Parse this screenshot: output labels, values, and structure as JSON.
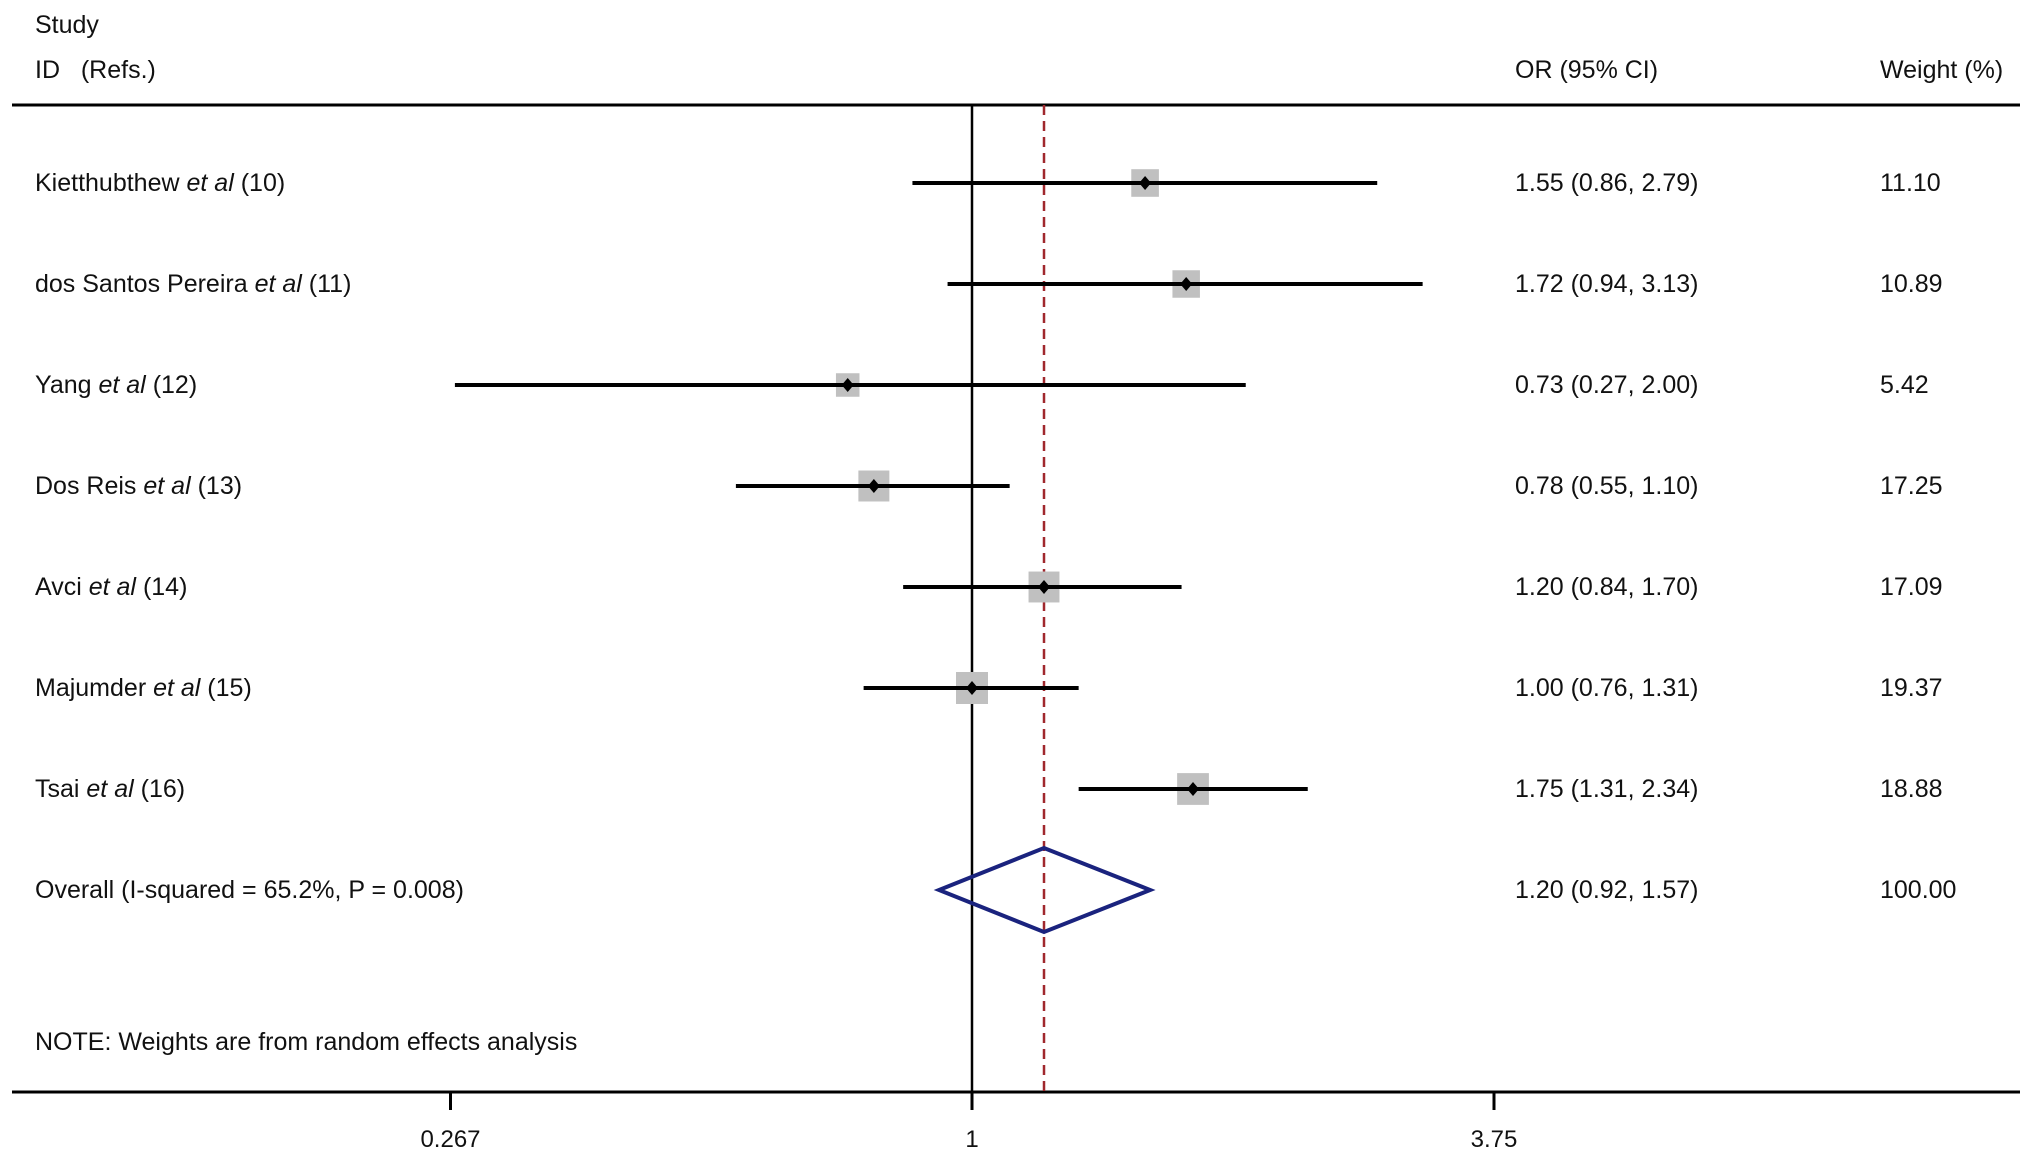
{
  "header": {
    "study": "Study",
    "id_refs": "ID   (Refs.)",
    "or_ci": "OR (95% CI)",
    "weight": "Weight (%)"
  },
  "footnote": "NOTE: Weights are from random effects analysis",
  "chart_data": {
    "type": "forest",
    "x_scale": "log",
    "xlim": [
      0.25,
      12
    ],
    "x_ticks": [
      0.267,
      1,
      3.75
    ],
    "x_tick_labels": [
      "0.267",
      "1",
      "3.75"
    ],
    "reference_line": 1,
    "overall_line": 1.2,
    "colors": {
      "line": "#000000",
      "box": "#c0c0c0",
      "diamond": "#1a237e",
      "overall_line": "#a0282d"
    },
    "studies": [
      {
        "name": "Kietthubthew",
        "etal": "et al",
        "ref": "(10)",
        "or": 1.55,
        "lo": 0.86,
        "hi": 2.79,
        "ci_text": "1.55 (0.86, 2.79)",
        "weight": 11.1,
        "weight_text": "11.10"
      },
      {
        "name": "dos Santos Pereira",
        "etal": "et al",
        "ref": "(11)",
        "or": 1.72,
        "lo": 0.94,
        "hi": 3.13,
        "ci_text": "1.72 (0.94, 3.13)",
        "weight": 10.89,
        "weight_text": "10.89"
      },
      {
        "name": "Yang",
        "etal": "et al",
        "ref": "(12)",
        "or": 0.73,
        "lo": 0.27,
        "hi": 2.0,
        "ci_text": "0.73 (0.27, 2.00)",
        "weight": 5.42,
        "weight_text": "5.42"
      },
      {
        "name": "Dos Reis",
        "etal": "et al",
        "ref": "(13)",
        "or": 0.78,
        "lo": 0.55,
        "hi": 1.1,
        "ci_text": "0.78 (0.55, 1.10)",
        "weight": 17.25,
        "weight_text": "17.25"
      },
      {
        "name": "Avci",
        "etal": "et al",
        "ref": "(14)",
        "or": 1.2,
        "lo": 0.84,
        "hi": 1.7,
        "ci_text": "1.20 (0.84, 1.70)",
        "weight": 17.09,
        "weight_text": "17.09"
      },
      {
        "name": "Majumder",
        "etal": "et al",
        "ref": "(15)",
        "or": 1.0,
        "lo": 0.76,
        "hi": 1.31,
        "ci_text": "1.00 (0.76, 1.31)",
        "weight": 19.37,
        "weight_text": "19.37"
      },
      {
        "name": "Tsai",
        "etal": "et al",
        "ref": "(16)",
        "or": 1.75,
        "lo": 1.31,
        "hi": 2.34,
        "ci_text": "1.75 (1.31, 2.34)",
        "weight": 18.88,
        "weight_text": "18.88"
      }
    ],
    "overall": {
      "label": "Overall (I-squared = 65.2%, P = 0.008)",
      "or": 1.2,
      "lo": 0.92,
      "hi": 1.57,
      "ci_text": "1.20 (0.92, 1.57)",
      "weight_text": "100.00"
    }
  }
}
